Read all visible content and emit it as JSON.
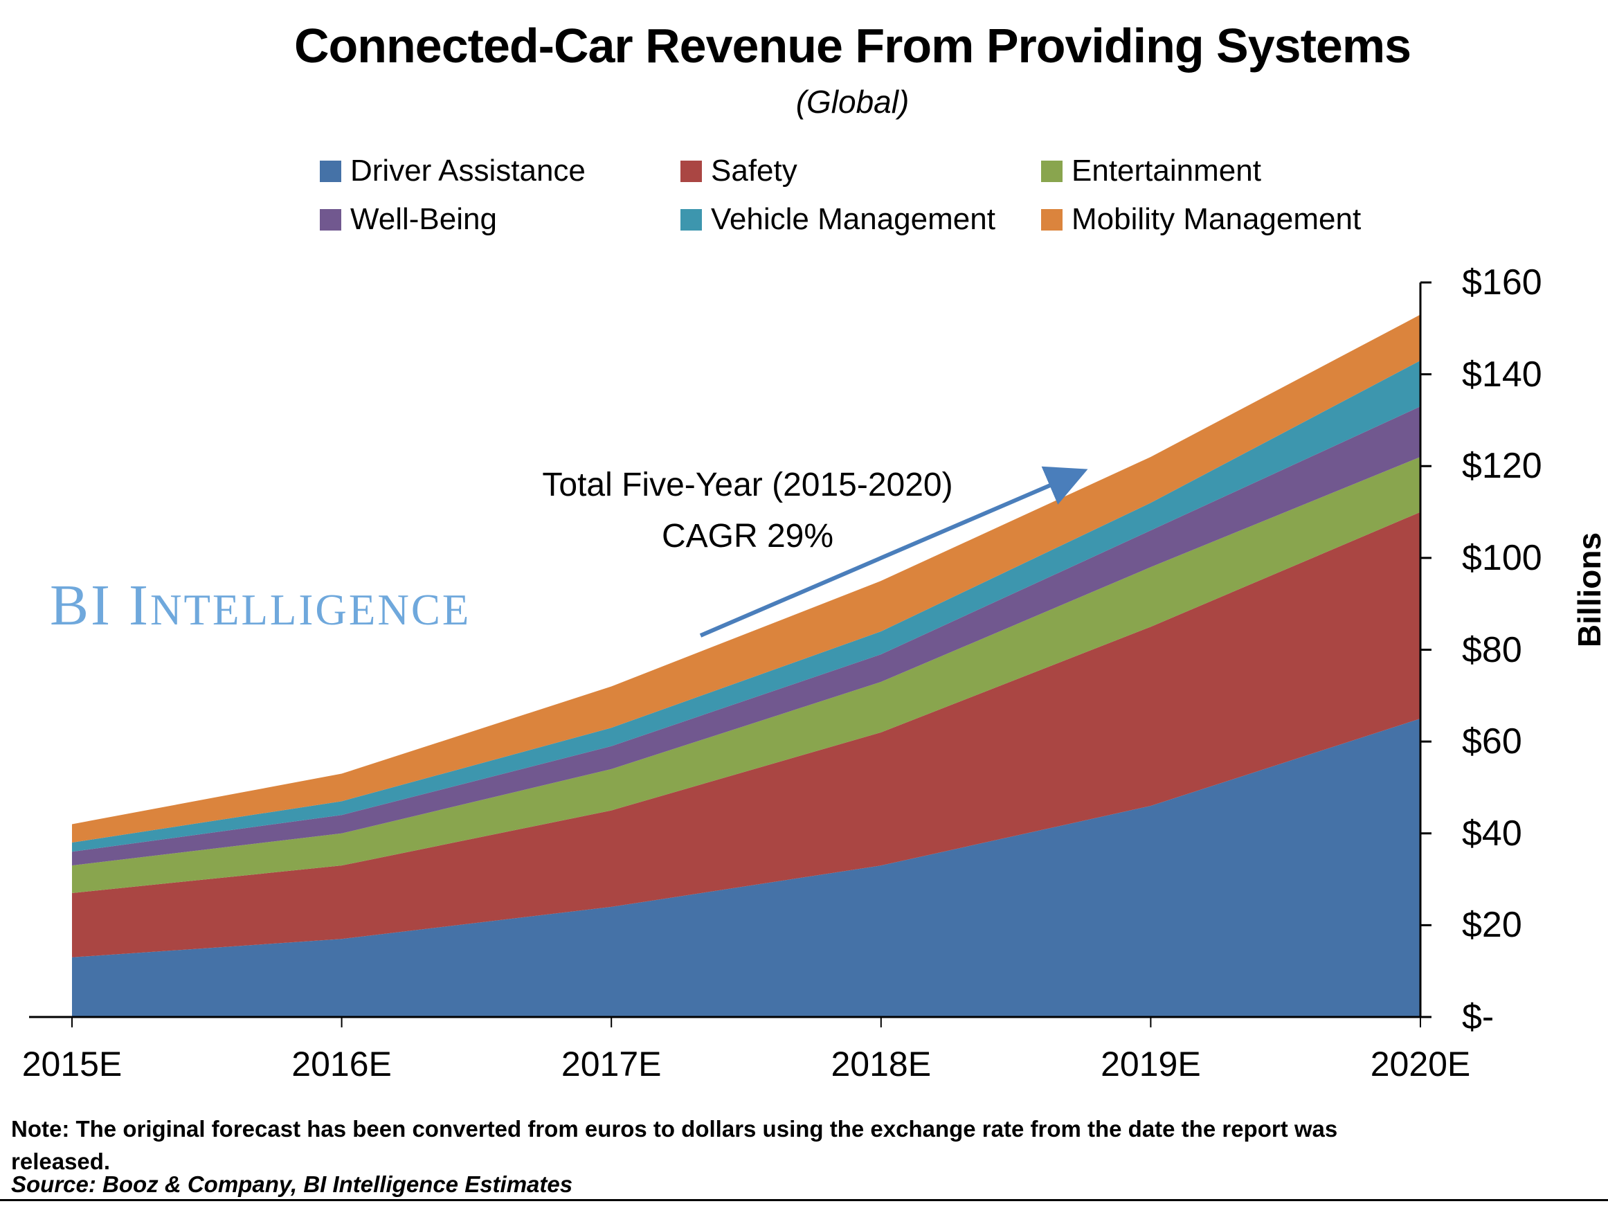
{
  "title": "Connected-Car Revenue From Providing Systems",
  "subtitle": "(Global)",
  "watermark": {
    "lead": "BI I",
    "rest": "NTELLIGENCE"
  },
  "annotation": {
    "line1": "Total Five-Year (2015-2020)",
    "line2": "CAGR 29%"
  },
  "axis": {
    "ylabel": "Billions",
    "y_tick_labels": [
      "$160",
      "$140",
      "$120",
      "$100",
      "$80",
      "$60",
      "$40",
      "$20",
      "$-"
    ],
    "x_tick_labels": [
      "2015E",
      "2016E",
      "2017E",
      "2018E",
      "2019E",
      "2020E"
    ]
  },
  "note": "Note: The original forecast has been converted from euros to dollars using the exchange rate from the date the report was released.",
  "source": "Source: Booz & Company, BI Intelligence Estimates",
  "arrow_color": "#4A7EBB",
  "chart_data": {
    "type": "area",
    "stacked": true,
    "title": "Connected-Car Revenue From Providing Systems (Global)",
    "x": [
      "2015E",
      "2016E",
      "2017E",
      "2018E",
      "2019E",
      "2020E"
    ],
    "series": [
      {
        "name": "Driver Assistance",
        "color": "#4572A7",
        "values": [
          13,
          17,
          24,
          33,
          46,
          65
        ]
      },
      {
        "name": "Safety",
        "color": "#AA4643",
        "values": [
          14,
          16,
          21,
          29,
          39,
          45
        ]
      },
      {
        "name": "Entertainment",
        "color": "#89A54E",
        "values": [
          6,
          7,
          9,
          11,
          13,
          12
        ]
      },
      {
        "name": "Well-Being",
        "color": "#71588F",
        "values": [
          3,
          4,
          5,
          6,
          8,
          11
        ]
      },
      {
        "name": "Vehicle Management",
        "color": "#3D96AE",
        "values": [
          2,
          3,
          4,
          5,
          6,
          10
        ]
      },
      {
        "name": "Mobility Management",
        "color": "#DB843D",
        "values": [
          4,
          6,
          9,
          11,
          10,
          10
        ]
      }
    ],
    "stack_totals": [
      42,
      53,
      72,
      95,
      122,
      153
    ],
    "ylabel": "Billions",
    "ylim": [
      0,
      160
    ],
    "y_tick_step": 20,
    "legend_position": "top",
    "grid": false,
    "annotation": "Total Five-Year (2015-2020) CAGR 29%"
  }
}
